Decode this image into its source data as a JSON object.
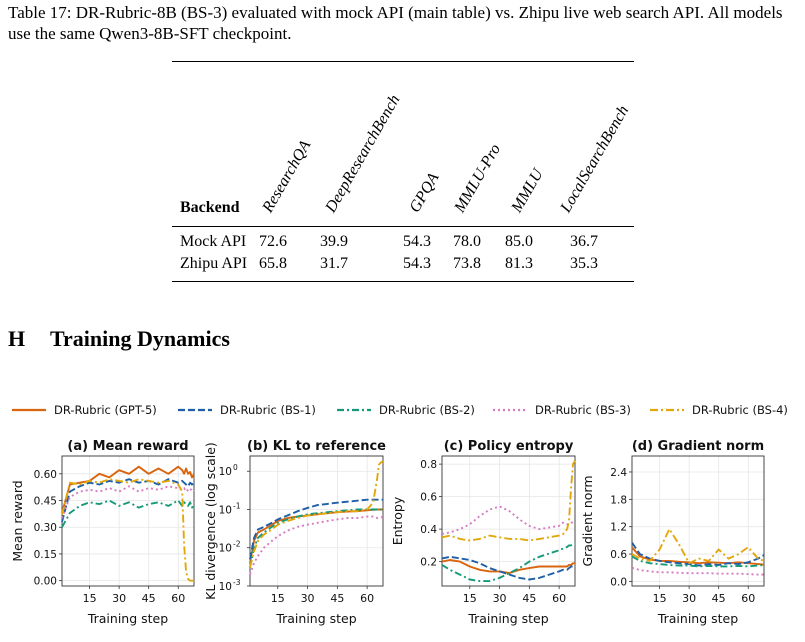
{
  "caption": "Table 17: DR-Rubric-8B (BS-3) evaluated with mock API (main table) vs. Zhipu live web search API. All models use the same Qwen3-8B-SFT checkpoint.",
  "table": {
    "backend_header": "Backend",
    "columns": [
      "ResearchQA",
      "DeepResearchBench",
      "GPQA",
      "MMLU-Pro",
      "MMLU",
      "LocalSearchBench"
    ],
    "rows": [
      {
        "label": "Mock API",
        "values": [
          "72.6",
          "39.9",
          "54.3",
          "78.0",
          "85.0",
          "36.7"
        ]
      },
      {
        "label": "Zhipu API",
        "values": [
          "65.8",
          "31.7",
          "54.3",
          "73.8",
          "81.3",
          "35.3"
        ]
      }
    ]
  },
  "section": {
    "number": "H",
    "title": "Training Dynamics"
  },
  "legend": [
    {
      "name": "DR-Rubric (GPT-5)",
      "color": "#d9660f",
      "dash": "solid"
    },
    {
      "name": "DR-Rubric (BS-1)",
      "color": "#1f5fa8",
      "dash": "dashed"
    },
    {
      "name": "DR-Rubric (BS-2)",
      "color": "#159a78",
      "dash": "dashdot"
    },
    {
      "name": "DR-Rubric (BS-3)",
      "color": "#d67ac4",
      "dash": "dotted"
    },
    {
      "name": "DR-Rubric (BS-4)",
      "color": "#e3a70a",
      "dash": "dashdot2"
    }
  ],
  "chart_data": [
    {
      "type": "line",
      "title": "(a) Mean reward",
      "xlabel": "Training step",
      "ylabel": "Mean reward",
      "xticks": [
        "15",
        "30",
        "45",
        "60"
      ],
      "yticks": [
        "0.00",
        "0.15",
        "0.30",
        "0.45",
        "0.60"
      ],
      "xlim": [
        1,
        68
      ],
      "ylim": [
        -0.03,
        0.7
      ],
      "x": [
        1,
        5,
        10,
        15,
        20,
        25,
        30,
        35,
        40,
        45,
        50,
        55,
        60,
        62,
        63,
        64,
        65,
        66,
        67,
        68
      ],
      "series": [
        {
          "name": "DR-Rubric (GPT-5)",
          "values": [
            0.38,
            0.54,
            0.55,
            0.56,
            0.6,
            0.58,
            0.62,
            0.6,
            0.64,
            0.6,
            0.63,
            0.6,
            0.64,
            0.62,
            0.6,
            0.63,
            0.6,
            0.61,
            0.58,
            0.6
          ]
        },
        {
          "name": "DR-Rubric (BS-1)",
          "values": [
            0.33,
            0.5,
            0.53,
            0.55,
            0.54,
            0.56,
            0.55,
            0.57,
            0.55,
            0.56,
            0.54,
            0.57,
            0.55,
            0.56,
            0.55,
            0.54,
            0.53,
            0.55,
            0.54,
            0.55
          ]
        },
        {
          "name": "DR-Rubric (BS-2)",
          "values": [
            0.3,
            0.38,
            0.42,
            0.44,
            0.43,
            0.45,
            0.42,
            0.44,
            0.41,
            0.43,
            0.44,
            0.42,
            0.45,
            0.42,
            0.44,
            0.43,
            0.42,
            0.44,
            0.41,
            0.43
          ]
        },
        {
          "name": "DR-Rubric (BS-3)",
          "values": [
            0.35,
            0.47,
            0.5,
            0.51,
            0.5,
            0.52,
            0.5,
            0.53,
            0.5,
            0.52,
            0.51,
            0.53,
            0.52,
            0.51,
            0.52,
            0.5,
            0.51,
            0.52,
            0.5,
            0.51
          ]
        },
        {
          "name": "DR-Rubric (BS-4)",
          "values": [
            0.37,
            0.55,
            0.54,
            0.56,
            0.55,
            0.57,
            0.56,
            0.55,
            0.57,
            0.56,
            0.55,
            0.56,
            0.54,
            0.5,
            0.2,
            0.05,
            0.01,
            0.0,
            0.0,
            0.0
          ]
        }
      ]
    },
    {
      "type": "line",
      "title": "(b) KL to reference",
      "xlabel": "Training step",
      "ylabel": "KL divergence (log scale)",
      "yscale": "log",
      "xticks": [
        "15",
        "30",
        "45",
        "60"
      ],
      "yticks": [
        "10^-3",
        "10^-2",
        "10^-1",
        "10^0"
      ],
      "xlim": [
        1,
        68
      ],
      "ylim": [
        0.001,
        2.5
      ],
      "x": [
        1,
        3,
        5,
        8,
        12,
        15,
        20,
        25,
        30,
        35,
        40,
        45,
        50,
        55,
        60,
        63,
        65,
        66,
        67,
        68
      ],
      "series": [
        {
          "name": "DR-Rubric (GPT-5)",
          "values": [
            0.004,
            0.015,
            0.025,
            0.03,
            0.04,
            0.05,
            0.06,
            0.065,
            0.07,
            0.075,
            0.08,
            0.085,
            0.088,
            0.09,
            0.095,
            0.098,
            0.1,
            0.1,
            0.1,
            0.1
          ]
        },
        {
          "name": "DR-Rubric (BS-1)",
          "values": [
            0.005,
            0.018,
            0.03,
            0.035,
            0.045,
            0.055,
            0.07,
            0.09,
            0.11,
            0.13,
            0.14,
            0.15,
            0.16,
            0.17,
            0.18,
            0.18,
            0.18,
            0.18,
            0.18,
            0.18
          ]
        },
        {
          "name": "DR-Rubric (BS-2)",
          "values": [
            0.003,
            0.01,
            0.018,
            0.025,
            0.035,
            0.045,
            0.055,
            0.065,
            0.075,
            0.08,
            0.085,
            0.09,
            0.095,
            0.1,
            0.1,
            0.1,
            0.1,
            0.1,
            0.1,
            0.1
          ]
        },
        {
          "name": "DR-Rubric (BS-3)",
          "values": [
            0.002,
            0.004,
            0.006,
            0.01,
            0.015,
            0.02,
            0.028,
            0.035,
            0.04,
            0.045,
            0.05,
            0.055,
            0.06,
            0.06,
            0.065,
            0.065,
            0.06,
            0.062,
            0.063,
            0.063
          ]
        },
        {
          "name": "DR-Rubric (BS-4)",
          "values": [
            0.003,
            0.008,
            0.015,
            0.022,
            0.03,
            0.04,
            0.05,
            0.06,
            0.07,
            0.075,
            0.08,
            0.085,
            0.09,
            0.09,
            0.1,
            0.15,
            0.6,
            1.5,
            1.7,
            1.8
          ]
        }
      ]
    },
    {
      "type": "line",
      "title": "(c) Policy entropy",
      "xlabel": "Training step",
      "ylabel": "Entropy",
      "xticks": [
        "15",
        "30",
        "45",
        "60"
      ],
      "yticks": [
        "0.2",
        "0.4",
        "0.6",
        "0.8"
      ],
      "xlim": [
        1,
        68
      ],
      "ylim": [
        0.05,
        0.85
      ],
      "x": [
        1,
        5,
        10,
        15,
        20,
        25,
        30,
        35,
        40,
        45,
        50,
        55,
        60,
        62,
        64,
        65,
        66,
        67,
        68
      ],
      "series": [
        {
          "name": "DR-Rubric (GPT-5)",
          "values": [
            0.2,
            0.21,
            0.2,
            0.17,
            0.15,
            0.14,
            0.14,
            0.13,
            0.15,
            0.16,
            0.17,
            0.17,
            0.17,
            0.17,
            0.17,
            0.18,
            0.18,
            0.19,
            0.19
          ]
        },
        {
          "name": "DR-Rubric (BS-1)",
          "values": [
            0.22,
            0.23,
            0.22,
            0.21,
            0.19,
            0.16,
            0.14,
            0.12,
            0.1,
            0.09,
            0.1,
            0.12,
            0.14,
            0.15,
            0.15,
            0.16,
            0.17,
            0.17,
            0.17
          ]
        },
        {
          "name": "DR-Rubric (BS-2)",
          "values": [
            0.18,
            0.15,
            0.12,
            0.09,
            0.08,
            0.08,
            0.1,
            0.13,
            0.16,
            0.2,
            0.23,
            0.25,
            0.27,
            0.28,
            0.29,
            0.3,
            0.3,
            0.31,
            0.31
          ]
        },
        {
          "name": "DR-Rubric (BS-3)",
          "values": [
            0.37,
            0.38,
            0.4,
            0.43,
            0.48,
            0.52,
            0.54,
            0.51,
            0.46,
            0.42,
            0.4,
            0.41,
            0.42,
            0.44,
            0.43,
            0.43,
            0.44,
            0.44,
            0.44
          ]
        },
        {
          "name": "DR-Rubric (BS-4)",
          "values": [
            0.35,
            0.36,
            0.34,
            0.33,
            0.34,
            0.36,
            0.35,
            0.34,
            0.34,
            0.33,
            0.34,
            0.35,
            0.36,
            0.37,
            0.4,
            0.45,
            0.65,
            0.8,
            0.82
          ]
        }
      ]
    },
    {
      "type": "line",
      "title": "(d) Gradient norm",
      "xlabel": "Training step",
      "ylabel": "Gradient norm",
      "xticks": [
        "15",
        "30",
        "45",
        "60"
      ],
      "yticks": [
        "0.0",
        "0.6",
        "1.2",
        "1.8",
        "2.4"
      ],
      "xlim": [
        1,
        68
      ],
      "ylim": [
        -0.1,
        2.75
      ],
      "x": [
        1,
        5,
        10,
        15,
        20,
        25,
        30,
        35,
        40,
        45,
        50,
        55,
        60,
        65,
        68
      ],
      "series": [
        {
          "name": "DR-Rubric (GPT-5)",
          "values": [
            0.75,
            0.55,
            0.48,
            0.45,
            0.45,
            0.43,
            0.42,
            0.4,
            0.42,
            0.41,
            0.4,
            0.42,
            0.4,
            0.38,
            0.37
          ]
        },
        {
          "name": "DR-Rubric (BS-1)",
          "values": [
            0.85,
            0.6,
            0.5,
            0.45,
            0.42,
            0.4,
            0.38,
            0.35,
            0.38,
            0.36,
            0.4,
            0.38,
            0.42,
            0.5,
            0.58
          ]
        },
        {
          "name": "DR-Rubric (BS-2)",
          "values": [
            0.55,
            0.45,
            0.4,
            0.38,
            0.36,
            0.35,
            0.35,
            0.33,
            0.34,
            0.33,
            0.33,
            0.34,
            0.33,
            0.35,
            0.36
          ]
        },
        {
          "name": "DR-Rubric (BS-3)",
          "values": [
            0.3,
            0.25,
            0.22,
            0.2,
            0.2,
            0.19,
            0.18,
            0.18,
            0.18,
            0.17,
            0.17,
            0.17,
            0.16,
            0.15,
            0.15
          ]
        },
        {
          "name": "DR-Rubric (BS-4)",
          "values": [
            0.6,
            0.5,
            0.45,
            0.7,
            1.15,
            0.8,
            0.4,
            0.5,
            0.45,
            0.7,
            0.5,
            0.6,
            0.75,
            0.5,
            0.45
          ]
        }
      ]
    }
  ]
}
